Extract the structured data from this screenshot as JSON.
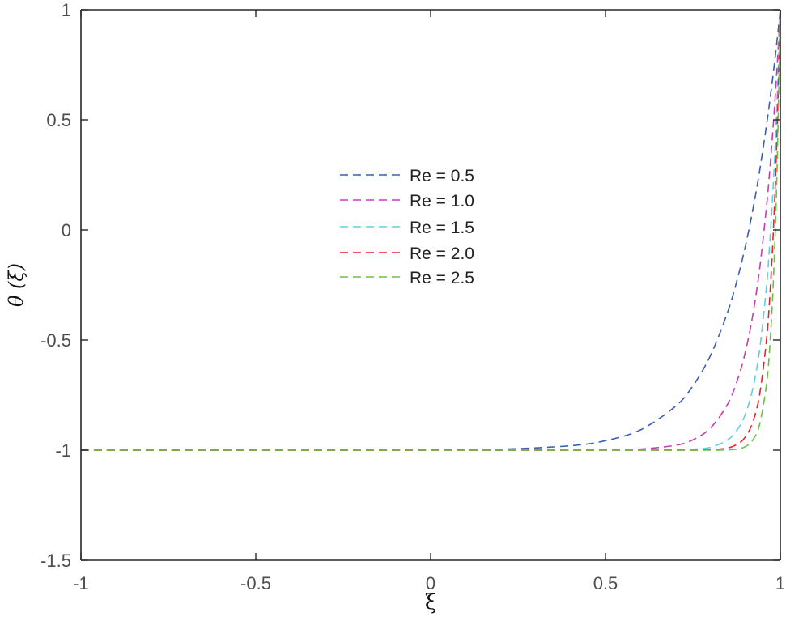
{
  "chart_data": {
    "type": "line",
    "title": "",
    "xlabel": "ξ",
    "ylabel": "θ (ξ)",
    "xlim": [
      -1,
      1
    ],
    "ylim": [
      -1.5,
      1
    ],
    "xticks": [
      -1,
      -0.5,
      0,
      0.5,
      1
    ],
    "xtick_labels": [
      "-1",
      "-0.5",
      "0",
      "0.5",
      "1"
    ],
    "yticks": [
      -1.5,
      -1,
      -0.5,
      0,
      0.5,
      1
    ],
    "ytick_labels": [
      "-1.5",
      "-1",
      "-0.5",
      "0",
      "0.5",
      "1"
    ],
    "grid": false,
    "legend_position": "inside-center",
    "line_style": "dashed",
    "x": [
      -1,
      -0.5,
      0,
      0.2,
      0.4,
      0.5,
      0.6,
      0.7,
      0.75,
      0.8,
      0.85,
      0.88,
      0.9,
      0.92,
      0.94,
      0.96,
      0.97,
      0.98,
      0.99,
      1.0
    ],
    "series": [
      {
        "name": "Re = 0.5",
        "color": "#3a5fb0",
        "values": [
          -1,
          -1,
          -0.999,
          -0.996,
          -0.98,
          -0.957,
          -0.908,
          -0.801,
          -0.708,
          -0.571,
          -0.37,
          -0.206,
          -0.074,
          0.08,
          0.26,
          0.47,
          0.588,
          0.714,
          0.852,
          1
        ]
      },
      {
        "name": "Re = 1.0",
        "color": "#c040b4",
        "values": [
          -1,
          -1,
          -1,
          -1,
          -1,
          -0.999,
          -0.995,
          -0.978,
          -0.953,
          -0.9,
          -0.789,
          -0.669,
          -0.554,
          -0.398,
          -0.187,
          0.098,
          0.275,
          0.482,
          0.721,
          1
        ]
      },
      {
        "name": "Re = 1.5",
        "color": "#5ccfe0",
        "values": [
          -1,
          -1,
          -1,
          -1,
          -1,
          -1,
          -1,
          -0.999,
          -0.996,
          -0.987,
          -0.953,
          -0.9,
          -0.836,
          -0.729,
          -0.554,
          -0.264,
          -0.055,
          0.213,
          0.558,
          1
        ]
      },
      {
        "name": "Re = 2.0",
        "color": "#e8202a",
        "values": [
          -1,
          -1,
          -1,
          -1,
          -1,
          -1,
          -1,
          -1,
          -1,
          -0.998,
          -0.99,
          -0.97,
          -0.94,
          -0.878,
          -0.755,
          -0.507,
          -0.3,
          -0.007,
          0.409,
          1
        ]
      },
      {
        "name": "Re = 2.5",
        "color": "#6cc043",
        "values": [
          -1,
          -1,
          -1,
          -1,
          -1,
          -1,
          -1,
          -1,
          -1,
          -1,
          -0.999,
          -0.994,
          -0.984,
          -0.957,
          -0.888,
          -0.707,
          -0.526,
          -0.234,
          0.238,
          1
        ]
      }
    ]
  },
  "legend": {
    "items": [
      {
        "label": "Re = 0.5",
        "color": "#3a5fb0"
      },
      {
        "label": "Re = 1.0",
        "color": "#c040b4"
      },
      {
        "label": "Re = 1.5",
        "color": "#5ccfe0"
      },
      {
        "label": "Re = 2.0",
        "color": "#e8202a"
      },
      {
        "label": "Re = 2.5",
        "color": "#6cc043"
      }
    ]
  },
  "axes": {
    "x_title": "ξ",
    "y_title": "θ (ξ)"
  }
}
